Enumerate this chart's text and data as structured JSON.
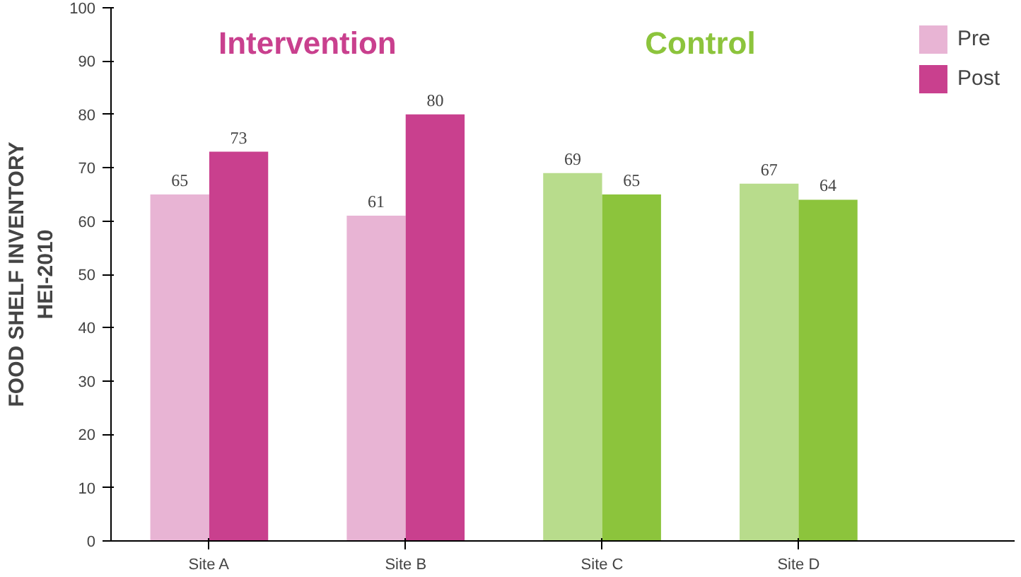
{
  "chart_data": {
    "type": "bar",
    "categories": [
      "Site A",
      "Site B",
      "Site C",
      "Site D"
    ],
    "ylabel": "FOOD SHELF INVENTORY\nHEI-2010",
    "series": [
      {
        "name": "Pre",
        "colors": [
          "#e8b4d4",
          "#e8b4d4",
          "#b8dc8c",
          "#b8dc8c"
        ],
        "values": [
          65,
          61,
          69,
          67
        ]
      },
      {
        "name": "Post",
        "colors": [
          "#c9408e",
          "#c9408e",
          "#8cc43c",
          "#8cc43c"
        ],
        "values": [
          73,
          80,
          65,
          64
        ]
      }
    ],
    "annotations": [
      "Intervention",
      "Control"
    ],
    "ylim": [
      0,
      100
    ],
    "yticks": [
      0,
      10,
      20,
      30,
      40,
      50,
      60,
      70,
      80,
      90,
      100
    ],
    "data_labels": true,
    "grid": false,
    "legend": "top right"
  }
}
